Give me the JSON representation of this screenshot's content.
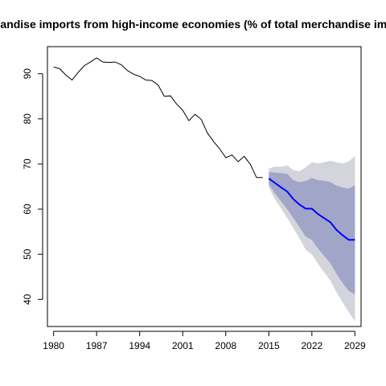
{
  "chart_data": {
    "type": "line",
    "title": "Merchandise imports from high-income economies (% of total merchandise imports)",
    "xlabel": "",
    "ylabel": "",
    "xlim": [
      1979,
      2030
    ],
    "ylim": [
      34,
      96
    ],
    "x_ticks": [
      "1980",
      "1987",
      "1994",
      "2001",
      "2008",
      "2015",
      "2022",
      "2029"
    ],
    "y_ticks": [
      "40",
      "50",
      "60",
      "70",
      "80",
      "90"
    ],
    "grid": false,
    "legend": "none",
    "historical": {
      "x": [
        1980,
        1981,
        1982,
        1983,
        1984,
        1985,
        1986,
        1987,
        1988,
        1989,
        1990,
        1991,
        1992,
        1993,
        1994,
        1995,
        1996,
        1997,
        1998,
        1999,
        2000,
        2001,
        2002,
        2003,
        2004,
        2005,
        2006,
        2007,
        2008,
        2009,
        2010,
        2011,
        2012,
        2013,
        2014
      ],
      "y": [
        91.5,
        91.1,
        89.7,
        88.6,
        90.3,
        91.8,
        92.6,
        93.5,
        92.6,
        92.5,
        92.6,
        92.0,
        90.7,
        89.9,
        89.4,
        88.6,
        88.5,
        87.5,
        85.0,
        85.1,
        83.3,
        81.9,
        79.6,
        81.0,
        79.9,
        76.9,
        75.0,
        73.4,
        71.4,
        72.0,
        70.5,
        71.7,
        69.9,
        67.0,
        67.0
      ]
    },
    "forecast": {
      "x": [
        2015,
        2016,
        2017,
        2018,
        2019,
        2020,
        2021,
        2022,
        2023,
        2024,
        2025,
        2026,
        2027,
        2028,
        2029
      ],
      "mean": [
        66.8,
        65.8,
        64.8,
        63.9,
        62.2,
        61.0,
        60.1,
        60.1,
        58.9,
        58.0,
        57.1,
        55.4,
        54.2,
        53.2,
        53.2
      ],
      "lo80": [
        65.5,
        63.5,
        61.7,
        60.0,
        58.0,
        56.0,
        53.9,
        53.2,
        51.3,
        49.6,
        48.0,
        45.7,
        43.6,
        41.9,
        41.1
      ],
      "hi80": [
        68.2,
        68.1,
        68.0,
        67.8,
        66.4,
        66.0,
        66.2,
        66.9,
        66.4,
        66.3,
        66.0,
        65.2,
        64.8,
        64.5,
        65.3
      ],
      "lo95": [
        64.8,
        62.2,
        60.1,
        58.0,
        55.8,
        53.5,
        51.0,
        50.0,
        47.9,
        46.0,
        44.2,
        41.6,
        39.3,
        37.2,
        35.1
      ],
      "hi95": [
        69.0,
        69.4,
        69.4,
        69.7,
        68.6,
        68.4,
        69.3,
        70.4,
        70.1,
        70.4,
        70.7,
        70.4,
        70.1,
        70.6,
        71.8
      ]
    },
    "colors": {
      "historical_line": "#000000",
      "forecast_line": "#0000ff",
      "band_80": "#a1a6c8",
      "band_95": "#d4d4dc",
      "axis": "#000000"
    }
  }
}
